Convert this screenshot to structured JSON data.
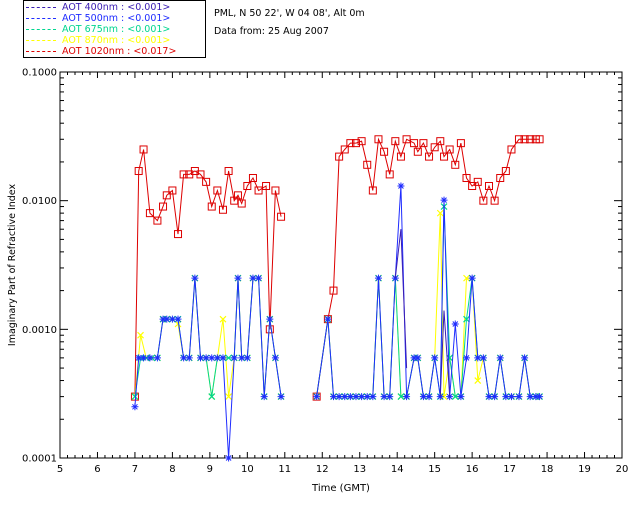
{
  "header": {
    "site": "PML, N 50 22', W 04 08', Alt 0m",
    "date": "Data from: 25 Aug 2007"
  },
  "legend": [
    {
      "label": "AOT  400nm : <0.001>",
      "color": "#3a1db3"
    },
    {
      "label": "AOT  500nm : <0.001>",
      "color": "#1f2cff"
    },
    {
      "label": "AOT  675nm : <0.001>",
      "color": "#00d68f"
    },
    {
      "label": "AOT  870nm : <0.001>",
      "color": "#ffff00"
    },
    {
      "label": "AOT 1020nm : <0.017>",
      "color": "#dd0000"
    }
  ],
  "chart_data": {
    "type": "line",
    "title": "",
    "xlabel": "Time (GMT)",
    "ylabel": "Imaginary Part of Refractive Index",
    "xlim": [
      5,
      20
    ],
    "ylim": [
      0.0001,
      0.1
    ],
    "yscale": "log",
    "xticks": [
      5,
      6,
      7,
      8,
      9,
      10,
      11,
      12,
      13,
      14,
      15,
      16,
      17,
      18,
      19,
      20
    ],
    "yticks": [
      {
        "value": 0.0001,
        "label": "0.0001"
      },
      {
        "value": 0.001,
        "label": "0.0010"
      },
      {
        "value": 0.01,
        "label": "0.0100"
      },
      {
        "value": 0.1,
        "label": "0.1000"
      }
    ],
    "series": [
      {
        "name": "AOT 1020nm",
        "color": "#dd0000",
        "marker": "square",
        "segments": [
          {
            "x": [
              7.0,
              7.1,
              7.23,
              7.4,
              7.6,
              7.75,
              7.85,
              8.0,
              8.15,
              8.3,
              8.45,
              8.6,
              8.75,
              8.9,
              9.05,
              9.2,
              9.35,
              9.5,
              9.65,
              9.75,
              9.85,
              10.0,
              10.15,
              10.3,
              10.5,
              10.6,
              10.75,
              10.9
            ],
            "y": [
              0.0003,
              0.017,
              0.025,
              0.008,
              0.007,
              0.009,
              0.011,
              0.012,
              0.0055,
              0.016,
              0.016,
              0.017,
              0.016,
              0.014,
              0.009,
              0.012,
              0.0085,
              0.017,
              0.01,
              0.011,
              0.0095,
              0.013,
              0.015,
              0.012,
              0.013,
              0.001,
              0.012,
              0.0075
            ]
          },
          {
            "x": [
              11.85,
              12.15,
              12.3,
              12.45,
              12.6,
              12.75,
              12.9,
              13.05,
              13.2,
              13.35,
              13.5,
              13.65,
              13.8,
              13.95,
              14.1,
              14.25,
              14.45,
              14.55,
              14.7,
              14.85,
              15.0,
              15.15,
              15.25,
              15.4,
              15.55,
              15.7,
              15.85,
              16.0,
              16.15,
              16.3,
              16.45,
              16.6,
              16.75,
              16.9,
              17.05,
              17.25,
              17.4,
              17.55,
              17.7,
              17.8
            ],
            "y": [
              0.0003,
              0.0012,
              0.002,
              0.022,
              0.025,
              0.028,
              0.028,
              0.029,
              0.019,
              0.012,
              0.03,
              0.024,
              0.016,
              0.029,
              0.022,
              0.03,
              0.028,
              0.024,
              0.028,
              0.022,
              0.026,
              0.029,
              0.022,
              0.025,
              0.019,
              0.028,
              0.015,
              0.013,
              0.014,
              0.01,
              0.013,
              0.01,
              0.015,
              0.017,
              0.025,
              0.03,
              0.03,
              0.03,
              0.03,
              0.03
            ]
          }
        ]
      },
      {
        "name": "AOT 870nm",
        "color": "#ffff00",
        "marker": "cross",
        "segments": [
          {
            "x": [
              7.0,
              7.15,
              7.3,
              7.45,
              7.6,
              7.75,
              7.85,
              8.0,
              8.15,
              8.3,
              8.45,
              8.6,
              8.75,
              8.9,
              9.05,
              9.2,
              9.35,
              9.5,
              9.65,
              9.75,
              9.85,
              10.0,
              10.15,
              10.3,
              10.45,
              10.6,
              10.75,
              10.9
            ],
            "y": [
              0.0003,
              0.0009,
              0.0006,
              0.0006,
              0.0006,
              0.0012,
              0.0012,
              0.0012,
              0.0011,
              0.0006,
              0.0006,
              0.0025,
              0.0006,
              0.0006,
              0.0003,
              0.0006,
              0.0012,
              0.0003,
              0.0006,
              0.0025,
              0.0006,
              0.0006,
              0.0025,
              0.0025,
              0.0003,
              0.0012,
              0.0006,
              0.0003
            ]
          },
          {
            "x": [
              11.85,
              12.15,
              12.3,
              12.45,
              12.6,
              12.75,
              12.9,
              13.05,
              13.2,
              13.35,
              13.5,
              13.65,
              13.8,
              13.95,
              14.1,
              14.25,
              14.45,
              14.55,
              14.7,
              14.85,
              15.0,
              15.15,
              15.25,
              15.4,
              15.55,
              15.7,
              15.85,
              16.0,
              16.15,
              16.3,
              16.45,
              16.6,
              16.75,
              16.9,
              17.05,
              17.25,
              17.4,
              17.55,
              17.7,
              17.8
            ],
            "y": [
              0.0003,
              0.0012,
              0.0003,
              0.0003,
              0.0003,
              0.0003,
              0.0003,
              0.0003,
              0.0003,
              0.0003,
              0.0025,
              0.0003,
              0.0003,
              0.0025,
              0.0003,
              0.0003,
              0.0006,
              0.0006,
              0.0003,
              0.0003,
              0.0006,
              0.008,
              0.0003,
              0.0006,
              0.0003,
              0.0003,
              0.0025,
              0.0025,
              0.0004,
              0.0006,
              0.0003,
              0.0003,
              0.0006,
              0.0003,
              0.0003,
              0.0003,
              0.0006,
              0.0003,
              0.0003,
              0.0003
            ]
          }
        ]
      },
      {
        "name": "AOT 675nm",
        "color": "#00d68f",
        "marker": "cross",
        "segments": [
          {
            "x": [
              7.0,
              7.15,
              7.3,
              7.45,
              7.6,
              7.75,
              7.85,
              8.0,
              8.15,
              8.3,
              8.45,
              8.6,
              8.75,
              8.9,
              9.05,
              9.2,
              9.35,
              9.5,
              9.65,
              9.75,
              9.85,
              10.0,
              10.15,
              10.3,
              10.45,
              10.6,
              10.75,
              10.9
            ],
            "y": [
              0.0003,
              0.0006,
              0.0006,
              0.0006,
              0.0006,
              0.0012,
              0.0012,
              0.0012,
              0.0012,
              0.0006,
              0.0006,
              0.0025,
              0.0006,
              0.0006,
              0.0003,
              0.0006,
              0.0006,
              0.0006,
              0.0006,
              0.0025,
              0.0006,
              0.0006,
              0.0025,
              0.0025,
              0.0003,
              0.0012,
              0.0006,
              0.0003
            ]
          },
          {
            "x": [
              11.85,
              12.15,
              12.3,
              12.45,
              12.6,
              12.75,
              12.9,
              13.05,
              13.2,
              13.35,
              13.5,
              13.65,
              13.8,
              13.95,
              14.1,
              14.25,
              14.45,
              14.55,
              14.7,
              14.85,
              15.0,
              15.15,
              15.25,
              15.4,
              15.55,
              15.7,
              15.85,
              16.0,
              16.15,
              16.3,
              16.45,
              16.6,
              16.75,
              16.9,
              17.05,
              17.25,
              17.4,
              17.55,
              17.7,
              17.8
            ],
            "y": [
              0.0003,
              0.0012,
              0.0003,
              0.0003,
              0.0003,
              0.0003,
              0.0003,
              0.0003,
              0.0003,
              0.0003,
              0.0025,
              0.0003,
              0.0003,
              0.0025,
              0.0003,
              0.0003,
              0.0006,
              0.0006,
              0.0003,
              0.0003,
              0.0006,
              0.0003,
              0.009,
              0.0006,
              0.0003,
              0.0003,
              0.0012,
              0.0025,
              0.0006,
              0.0006,
              0.0003,
              0.0003,
              0.0006,
              0.0003,
              0.0003,
              0.0003,
              0.0006,
              0.0003,
              0.0003,
              0.0003
            ]
          }
        ]
      },
      {
        "name": "AOT 500nm",
        "color": "#1f2cff",
        "marker": "star",
        "segments": [
          {
            "x": [
              7.0,
              7.1,
              7.23,
              7.4,
              7.6,
              7.75,
              7.85,
              8.0,
              8.15,
              8.3,
              8.45,
              8.6,
              8.75,
              8.9,
              9.05,
              9.2,
              9.35,
              9.5,
              9.65,
              9.75,
              9.85,
              10.0,
              10.15,
              10.3,
              10.45,
              10.6,
              10.75,
              10.9
            ],
            "y": [
              0.00025,
              0.0006,
              0.0006,
              0.0006,
              0.0006,
              0.0012,
              0.0012,
              0.0012,
              0.0012,
              0.0006,
              0.0006,
              0.0025,
              0.0006,
              0.0006,
              0.0006,
              0.0006,
              0.0006,
              0.0001,
              0.0006,
              0.0025,
              0.0006,
              0.0006,
              0.0025,
              0.0025,
              0.0003,
              0.0012,
              0.0006,
              0.0003
            ]
          },
          {
            "x": [
              11.85,
              12.15,
              12.3,
              12.45,
              12.6,
              12.75,
              12.9,
              13.05,
              13.2,
              13.35,
              13.5,
              13.65,
              13.8,
              13.95,
              14.1,
              14.25,
              14.45,
              14.55,
              14.7,
              14.85,
              15.0,
              15.15,
              15.25,
              15.4,
              15.55,
              15.7,
              15.85,
              16.0,
              16.15,
              16.3,
              16.45,
              16.6,
              16.75,
              16.9,
              17.05,
              17.25,
              17.4,
              17.55,
              17.7,
              17.8
            ],
            "y": [
              0.0003,
              0.0012,
              0.0003,
              0.0003,
              0.0003,
              0.0003,
              0.0003,
              0.0003,
              0.0003,
              0.0003,
              0.0025,
              0.0003,
              0.0003,
              0.0025,
              0.013,
              0.0003,
              0.0006,
              0.0006,
              0.0003,
              0.0003,
              0.0006,
              0.0003,
              0.0101,
              0.0003,
              0.0011,
              0.0003,
              0.0006,
              0.0025,
              0.0006,
              0.0006,
              0.0003,
              0.0003,
              0.0006,
              0.0003,
              0.0003,
              0.0003,
              0.0006,
              0.0003,
              0.0003,
              0.0003
            ]
          }
        ]
      },
      {
        "name": "AOT 400nm",
        "color": "#3a1db3",
        "marker": "none",
        "segments": [
          {
            "x": [
              13.95,
              14.1,
              14.25
            ],
            "y": [
              0.0025,
              0.006,
              0.0005
            ]
          },
          {
            "x": [
              15.15,
              15.25,
              15.4
            ],
            "y": [
              0.0003,
              0.0014,
              0.0003
            ]
          }
        ]
      }
    ]
  }
}
